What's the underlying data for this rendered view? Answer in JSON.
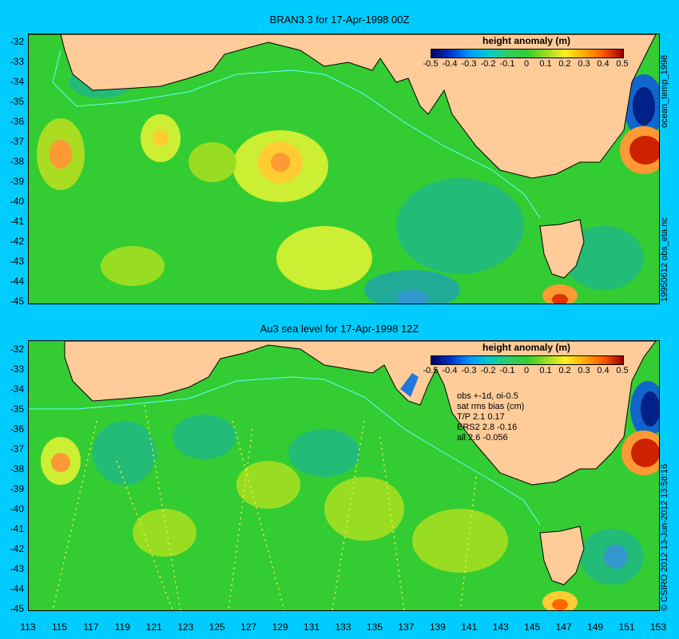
{
  "panels": [
    {
      "title": "BRAN3.3 for 17-Apr-1998 00Z",
      "side_label": "19950612 obs_eta.nc",
      "right_top_label": "ocean_temp_1998"
    },
    {
      "title": "Au3 sea level  for 17-Apr-1998 12Z",
      "side_label": "© CSIRO 2012  13-Jun-2012 13:58:16"
    }
  ],
  "legend": {
    "title": "height anomaly (m)",
    "ticks": [
      "-0.5",
      "-0.4",
      "-0.3",
      "-0.2",
      "-0.1",
      "0",
      "0.1",
      "0.2",
      "0.3",
      "0.4",
      "0.5"
    ]
  },
  "y_axis": [
    "-32",
    "-33",
    "-34",
    "-35",
    "-36",
    "-37",
    "-38",
    "-39",
    "-40",
    "-41",
    "-42",
    "-43",
    "-44",
    "-45"
  ],
  "x_axis": [
    "113",
    "115",
    "117",
    "119",
    "121",
    "123",
    "125",
    "127",
    "129",
    "131",
    "133",
    "135",
    "137",
    "139",
    "141",
    "143",
    "145",
    "147",
    "149",
    "151",
    "153"
  ],
  "stats": {
    "lines": [
      "obs +-1d, oi-0.5",
      "sat rms bias (cm)",
      "T/P  2.1 0.17",
      "ERS2 2.8 -0.16",
      "all 2.6 -0.056"
    ]
  },
  "colors": {
    "background": "#00ccff",
    "land": "#ffcc99",
    "ocean_base": "#33cc33",
    "coast_line": "#66ffff"
  }
}
